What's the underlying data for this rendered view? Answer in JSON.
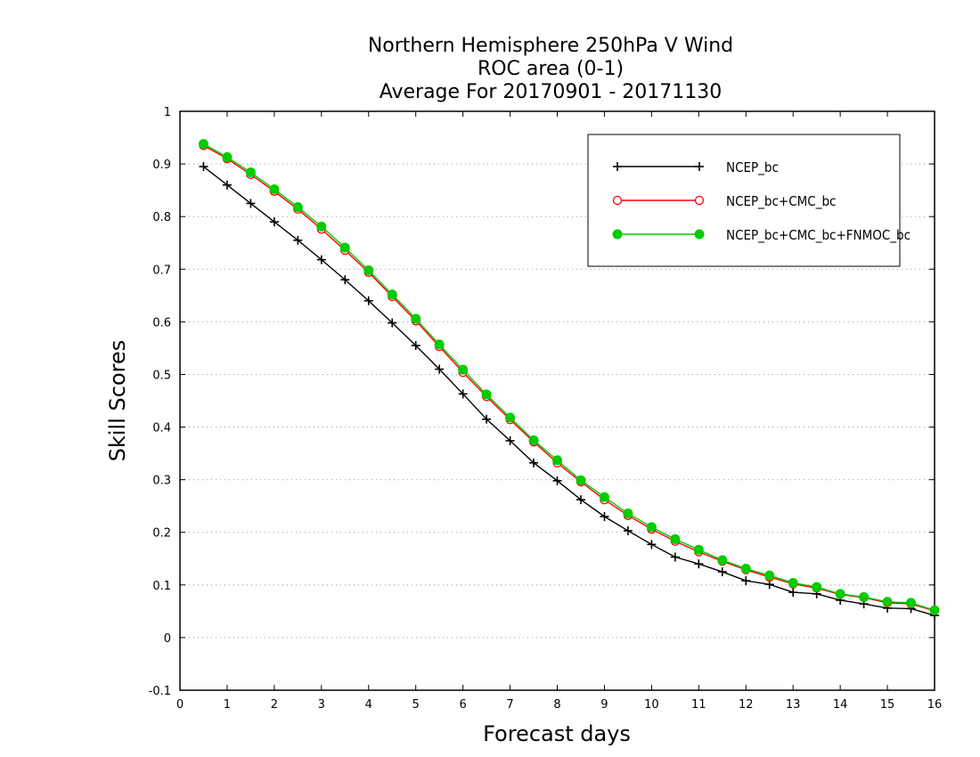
{
  "chart_data": {
    "type": "line",
    "title": [
      "Northern Hemisphere 250hPa V Wind",
      "ROC area (0-1)",
      "Average For 20170901 - 20171130"
    ],
    "xlabel": "Forecast days",
    "ylabel": "Skill Scores",
    "xlim": [
      0,
      16
    ],
    "ylim": [
      -0.1,
      1
    ],
    "x_ticks": [
      "0",
      "1",
      "2",
      "3",
      "4",
      "5",
      "6",
      "7",
      "8",
      "9",
      "10",
      "11",
      "12",
      "13",
      "14",
      "15",
      "16"
    ],
    "y_ticks": [
      "-0.1",
      "0",
      "0.1",
      "0.2",
      "0.3",
      "0.4",
      "0.5",
      "0.6",
      "0.7",
      "0.8",
      "0.9",
      "1"
    ],
    "grid": true,
    "legend_position": "top-right",
    "x": [
      0.5,
      1,
      1.5,
      2,
      2.5,
      3,
      3.5,
      4,
      4.5,
      5,
      5.5,
      6,
      6.5,
      7,
      7.5,
      8,
      8.5,
      9,
      9.5,
      10,
      10.5,
      11,
      11.5,
      12,
      12.5,
      13,
      13.5,
      14,
      14.5,
      15,
      15.5,
      16
    ],
    "series": [
      {
        "name": "NCEP_bc",
        "color": "#000000",
        "marker": "plus",
        "values": [
          0.895,
          0.86,
          0.825,
          0.79,
          0.755,
          0.718,
          0.68,
          0.64,
          0.598,
          0.555,
          0.51,
          0.463,
          0.415,
          0.374,
          0.332,
          0.298,
          0.262,
          0.23,
          0.203,
          0.177,
          0.153,
          0.14,
          0.125,
          0.108,
          0.101,
          0.086,
          0.083,
          0.071,
          0.064,
          0.056,
          0.055,
          0.042
        ]
      },
      {
        "name": "NCEP_bc+CMC_bc",
        "color": "#ff0000",
        "marker": "open-circle",
        "values": [
          0.935,
          0.91,
          0.88,
          0.848,
          0.814,
          0.776,
          0.736,
          0.694,
          0.648,
          0.602,
          0.553,
          0.504,
          0.458,
          0.414,
          0.372,
          0.332,
          0.296,
          0.262,
          0.232,
          0.206,
          0.183,
          0.163,
          0.145,
          0.129,
          0.115,
          0.102,
          0.094,
          0.082,
          0.076,
          0.066,
          0.064,
          0.051
        ]
      },
      {
        "name": "NCEP_bc+CMC_bc+FNMOC_bc",
        "color": "#00cc00",
        "marker": "filled-circle",
        "values": [
          0.938,
          0.913,
          0.884,
          0.852,
          0.818,
          0.781,
          0.741,
          0.698,
          0.652,
          0.606,
          0.557,
          0.509,
          0.462,
          0.418,
          0.375,
          0.337,
          0.299,
          0.267,
          0.236,
          0.21,
          0.187,
          0.167,
          0.147,
          0.131,
          0.118,
          0.104,
          0.096,
          0.083,
          0.077,
          0.068,
          0.066,
          0.052
        ]
      }
    ]
  }
}
